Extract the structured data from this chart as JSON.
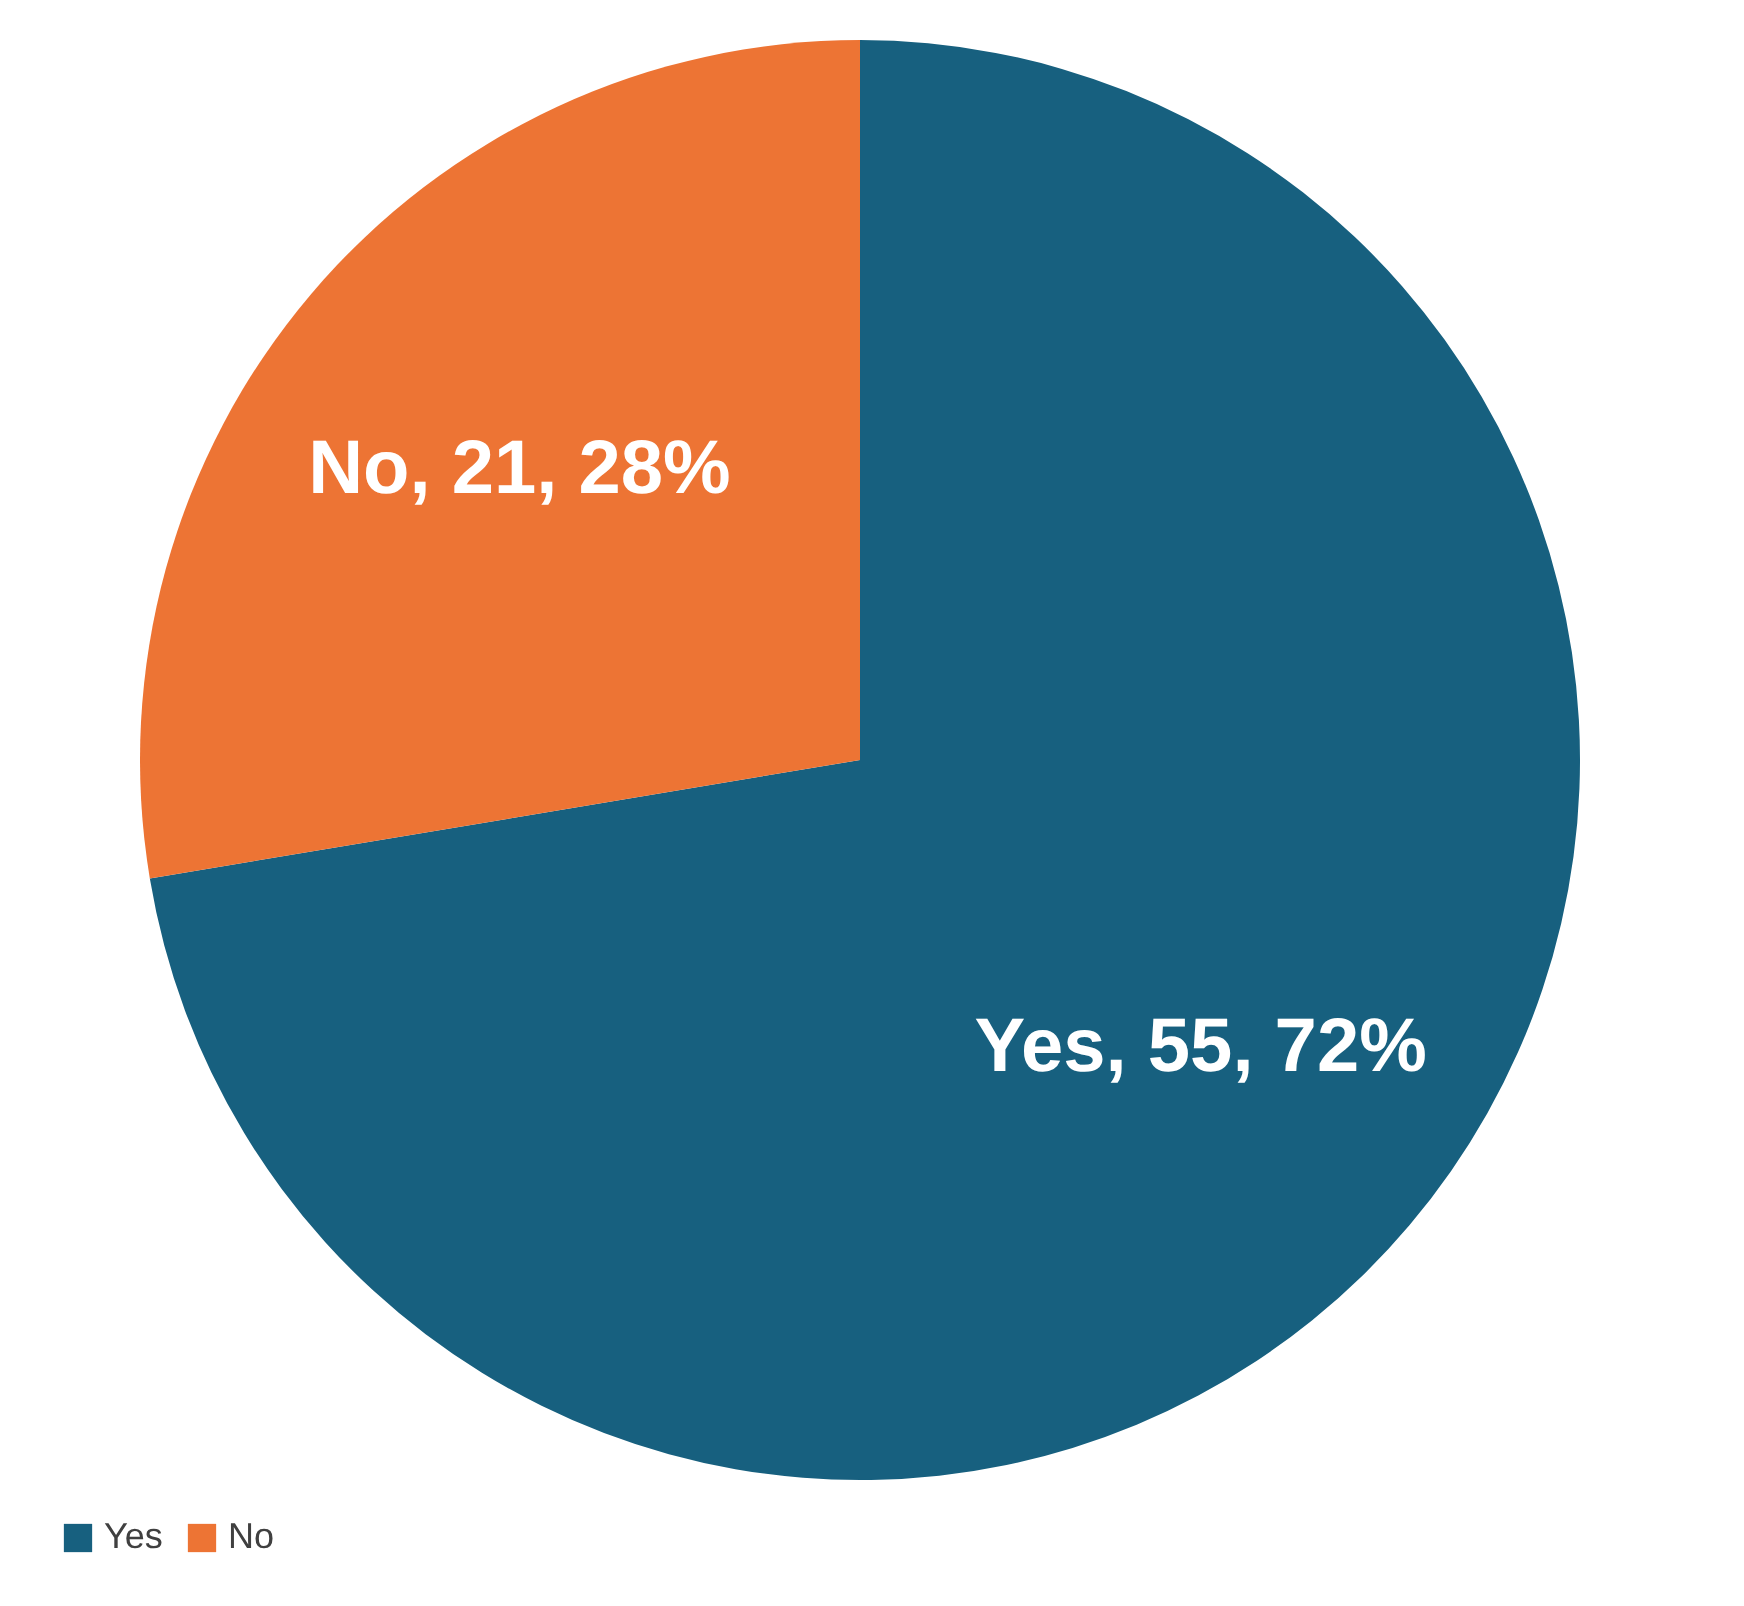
{
  "chart_data": {
    "type": "pie",
    "categories": [
      "Yes",
      "No"
    ],
    "values": [
      55,
      21
    ],
    "colors": [
      "#17607f",
      "#ed7434"
    ],
    "value_labels": [
      "Yes, 55, 72%",
      "No, 21, 28%"
    ],
    "legend": "bottom"
  }
}
